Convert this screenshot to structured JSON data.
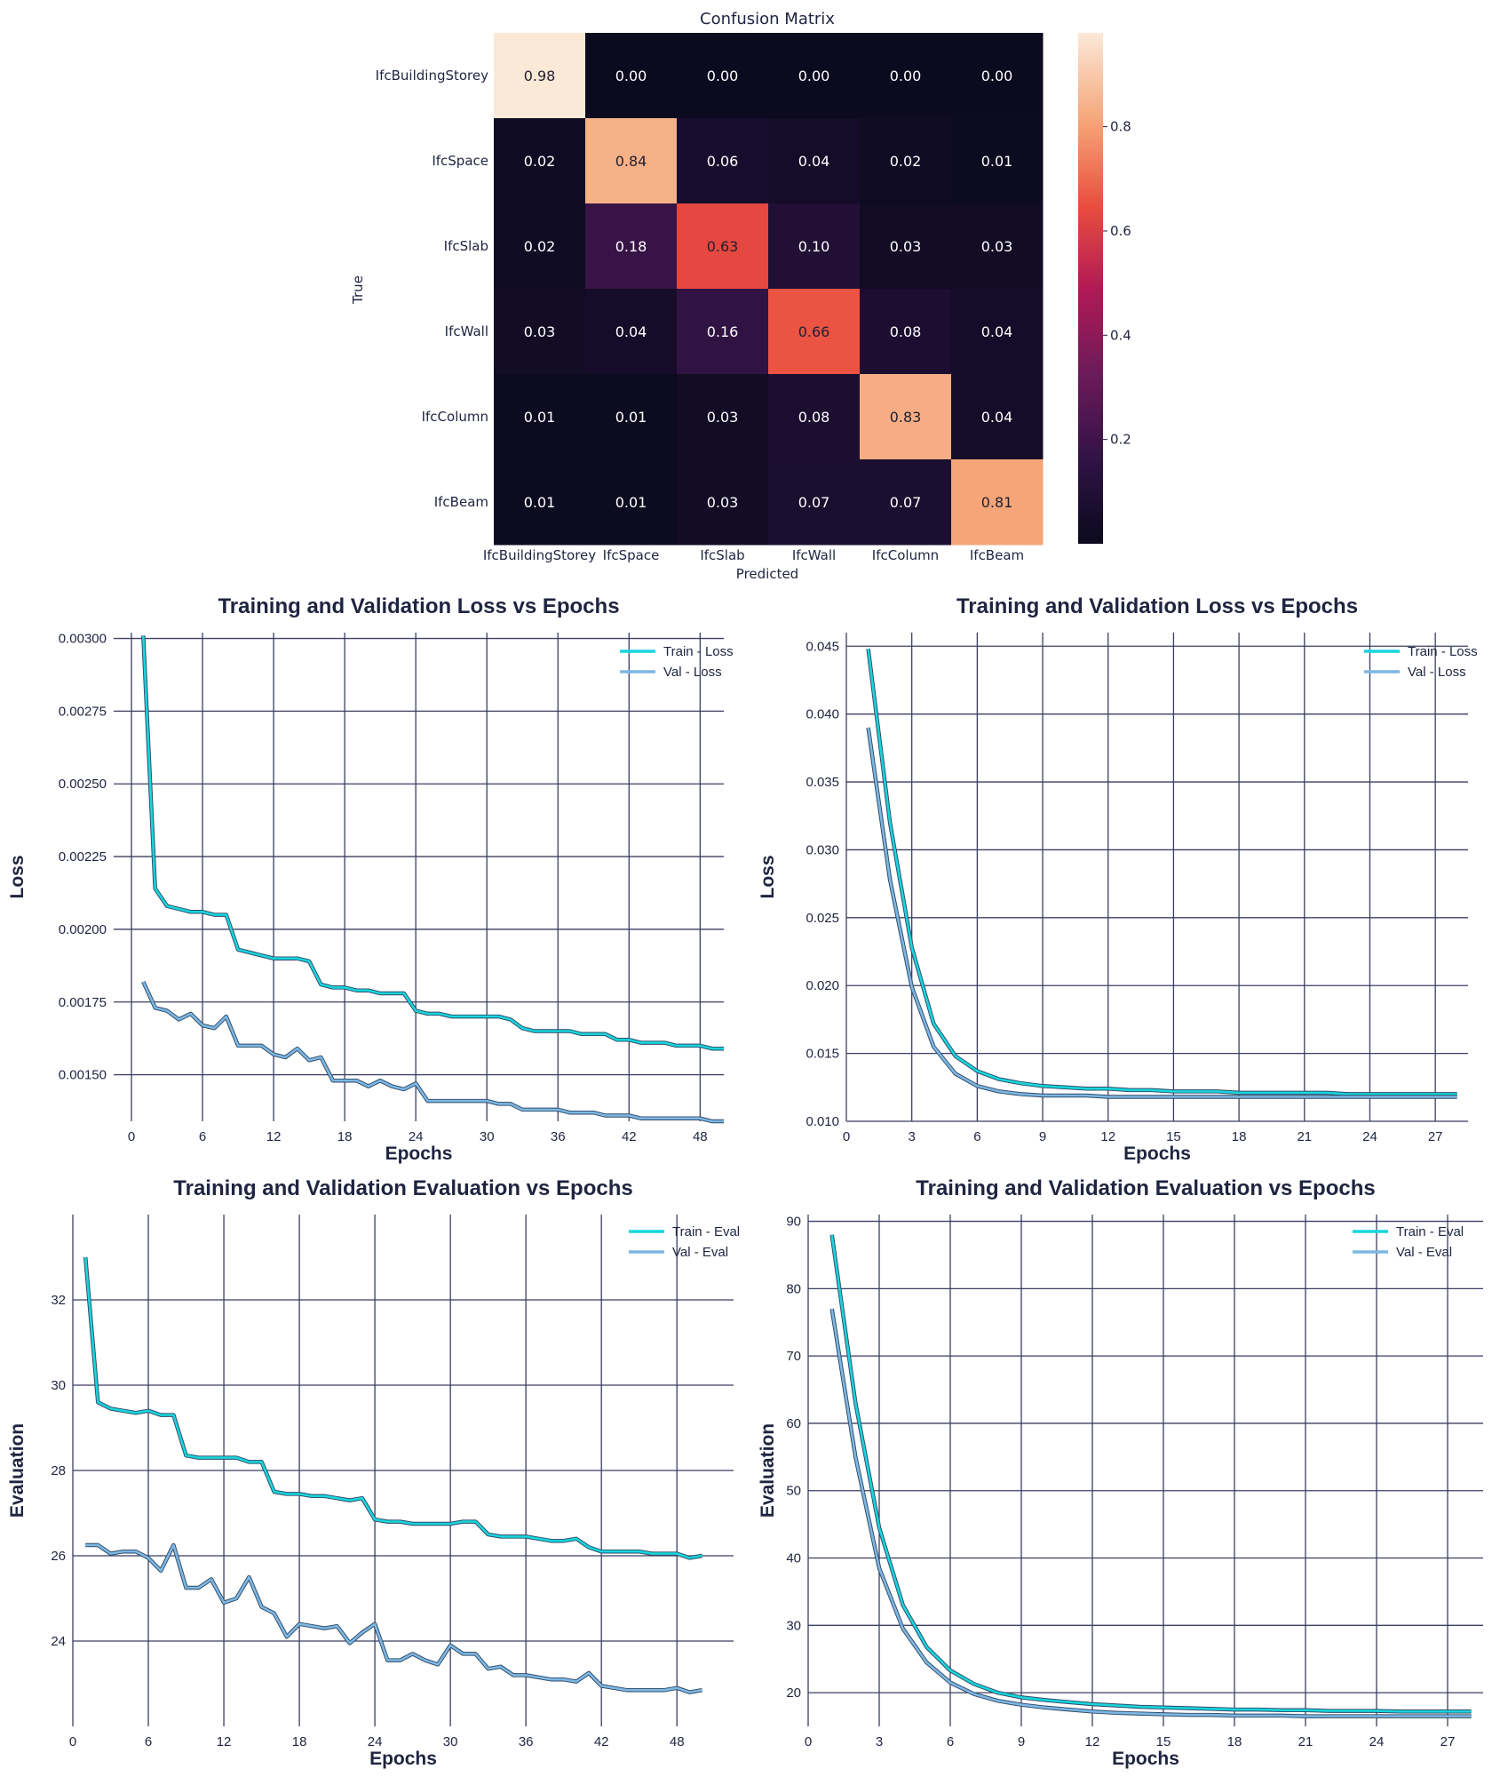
{
  "colors": {
    "train": "#17d6dc",
    "val": "#7db7e3",
    "grid": "#3b3f62",
    "cm_dark": "#0b0a1e",
    "cm_light": "#fbe9d8"
  },
  "chart_data": [
    {
      "type": "heatmap",
      "title": "Confusion Matrix",
      "xlabel": "Predicted",
      "ylabel": "True",
      "rows": [
        "IfcBuildingStorey",
        "IfcSpace",
        "IfcSlab",
        "IfcWall",
        "IfcColumn",
        "IfcBeam"
      ],
      "cols": [
        "IfcBuildingStorey",
        "IfcSpace",
        "IfcSlab",
        "IfcWall",
        "IfcColumn",
        "IfcBeam"
      ],
      "values": [
        [
          0.98,
          0.0,
          0.0,
          0.0,
          0.0,
          0.0
        ],
        [
          0.02,
          0.84,
          0.06,
          0.04,
          0.02,
          0.01
        ],
        [
          0.02,
          0.18,
          0.63,
          0.1,
          0.03,
          0.03
        ],
        [
          0.03,
          0.04,
          0.16,
          0.66,
          0.08,
          0.04
        ],
        [
          0.01,
          0.01,
          0.03,
          0.08,
          0.83,
          0.04
        ],
        [
          0.01,
          0.01,
          0.03,
          0.07,
          0.07,
          0.81
        ]
      ],
      "colorbar_ticks": [
        "0.2",
        "0.4",
        "0.6",
        "0.8"
      ],
      "vmin": 0.0,
      "vmax": 0.98
    },
    {
      "type": "line",
      "title": "Training and Validation Loss vs Epochs",
      "xlabel": "Epochs",
      "ylabel": "Loss",
      "xlim": [
        -1.5,
        50
      ],
      "ylim": [
        0.00134,
        0.00302
      ],
      "xticks": [
        0,
        6,
        12,
        18,
        24,
        30,
        36,
        42,
        48
      ],
      "yticks": [
        "0.00150",
        "0.00175",
        "0.00200",
        "0.00225",
        "0.00250",
        "0.00275",
        "0.00300"
      ],
      "legend": "top-right",
      "x": [
        1,
        2,
        3,
        4,
        5,
        6,
        7,
        8,
        9,
        10,
        11,
        12,
        13,
        14,
        15,
        16,
        17,
        18,
        19,
        20,
        21,
        22,
        23,
        24,
        25,
        26,
        27,
        28,
        29,
        30,
        31,
        32,
        33,
        34,
        35,
        36,
        37,
        38,
        39,
        40,
        41,
        42,
        43,
        44,
        45,
        46,
        47,
        48,
        49,
        50
      ],
      "series": [
        {
          "name": "Train - Loss",
          "values": [
            0.00301,
            0.00214,
            0.00208,
            0.00207,
            0.00206,
            0.00206,
            0.00205,
            0.00205,
            0.00193,
            0.00192,
            0.00191,
            0.0019,
            0.0019,
            0.0019,
            0.00189,
            0.00181,
            0.0018,
            0.0018,
            0.00179,
            0.00179,
            0.00178,
            0.00178,
            0.00178,
            0.00172,
            0.00171,
            0.00171,
            0.0017,
            0.0017,
            0.0017,
            0.0017,
            0.0017,
            0.00169,
            0.00166,
            0.00165,
            0.00165,
            0.00165,
            0.00165,
            0.00164,
            0.00164,
            0.00164,
            0.00162,
            0.00162,
            0.00161,
            0.00161,
            0.00161,
            0.0016,
            0.0016,
            0.0016,
            0.00159,
            0.00159
          ]
        },
        {
          "name": "Val - Loss",
          "values": [
            0.00182,
            0.00173,
            0.00172,
            0.00169,
            0.00171,
            0.00167,
            0.00166,
            0.0017,
            0.0016,
            0.0016,
            0.0016,
            0.00157,
            0.00156,
            0.00159,
            0.00155,
            0.00156,
            0.00148,
            0.00148,
            0.00148,
            0.00146,
            0.00148,
            0.00146,
            0.00145,
            0.00147,
            0.00141,
            0.00141,
            0.00141,
            0.00141,
            0.00141,
            0.00141,
            0.0014,
            0.0014,
            0.00138,
            0.00138,
            0.00138,
            0.00138,
            0.00137,
            0.00137,
            0.00137,
            0.00136,
            0.00136,
            0.00136,
            0.00135,
            0.00135,
            0.00135,
            0.00135,
            0.00135,
            0.00135,
            0.00134,
            0.00134
          ]
        }
      ]
    },
    {
      "type": "line",
      "title": "Training and Validation Loss vs Epochs",
      "xlabel": "Epochs",
      "ylabel": "Loss",
      "xlim": [
        0,
        28.5
      ],
      "ylim": [
        0.01,
        0.046
      ],
      "xticks": [
        0,
        3,
        6,
        9,
        12,
        15,
        18,
        21,
        24,
        27
      ],
      "yticks": [
        "0.010",
        "0.015",
        "0.020",
        "0.025",
        "0.030",
        "0.035",
        "0.040",
        "0.045"
      ],
      "legend": "top-right",
      "x": [
        1,
        2,
        3,
        4,
        5,
        6,
        7,
        8,
        9,
        10,
        11,
        12,
        13,
        14,
        15,
        16,
        17,
        18,
        19,
        20,
        21,
        22,
        23,
        24,
        25,
        26,
        27,
        28
      ],
      "series": [
        {
          "name": "Train - Loss",
          "values": [
            0.0448,
            0.032,
            0.0228,
            0.0172,
            0.0148,
            0.0137,
            0.0131,
            0.0128,
            0.0126,
            0.0125,
            0.0124,
            0.0124,
            0.0123,
            0.0123,
            0.0122,
            0.0122,
            0.0122,
            0.0121,
            0.0121,
            0.0121,
            0.0121,
            0.0121,
            0.012,
            0.012,
            0.012,
            0.012,
            0.012,
            0.012
          ]
        },
        {
          "name": "Val - Loss",
          "values": [
            0.039,
            0.0278,
            0.0199,
            0.0155,
            0.0135,
            0.0126,
            0.0122,
            0.012,
            0.0119,
            0.0119,
            0.0119,
            0.0118,
            0.0118,
            0.0118,
            0.0118,
            0.0118,
            0.0118,
            0.0118,
            0.0118,
            0.0118,
            0.0118,
            0.0118,
            0.0118,
            0.0118,
            0.0118,
            0.0118,
            0.0118,
            0.0118
          ]
        }
      ]
    },
    {
      "type": "line",
      "title": "Training and Validation Evaluation vs Epochs",
      "xlabel": "Epochs",
      "ylabel": "Evaluation",
      "xlim": [
        0,
        52.5
      ],
      "ylim": [
        22.0,
        34.0
      ],
      "xticks": [
        0,
        6,
        12,
        18,
        24,
        30,
        36,
        42,
        48
      ],
      "yticks": [
        "24",
        "26",
        "28",
        "30",
        "32"
      ],
      "legend": "top-right",
      "x": [
        1,
        2,
        3,
        4,
        5,
        6,
        7,
        8,
        9,
        10,
        11,
        12,
        13,
        14,
        15,
        16,
        17,
        18,
        19,
        20,
        21,
        22,
        23,
        24,
        25,
        26,
        27,
        28,
        29,
        30,
        31,
        32,
        33,
        34,
        35,
        36,
        37,
        38,
        39,
        40,
        41,
        42,
        43,
        44,
        45,
        46,
        47,
        48,
        49,
        50
      ],
      "series": [
        {
          "name": "Train - Eval",
          "values": [
            33.0,
            29.6,
            29.45,
            29.4,
            29.35,
            29.4,
            29.3,
            29.3,
            28.35,
            28.3,
            28.3,
            28.3,
            28.3,
            28.2,
            28.2,
            27.5,
            27.45,
            27.45,
            27.4,
            27.4,
            27.35,
            27.3,
            27.35,
            26.85,
            26.8,
            26.8,
            26.75,
            26.75,
            26.75,
            26.75,
            26.8,
            26.8,
            26.5,
            26.45,
            26.45,
            26.45,
            26.4,
            26.35,
            26.35,
            26.4,
            26.2,
            26.1,
            26.1,
            26.1,
            26.1,
            26.05,
            26.05,
            26.05,
            25.95,
            26.0
          ]
        },
        {
          "name": "Val - Eval",
          "values": [
            26.25,
            26.25,
            26.05,
            26.1,
            26.1,
            25.95,
            25.65,
            26.25,
            25.25,
            25.25,
            25.45,
            24.9,
            25.0,
            25.5,
            24.8,
            24.65,
            24.1,
            24.4,
            24.35,
            24.3,
            24.35,
            23.95,
            24.2,
            24.4,
            23.55,
            23.55,
            23.7,
            23.55,
            23.45,
            23.9,
            23.7,
            23.7,
            23.35,
            23.4,
            23.2,
            23.2,
            23.15,
            23.1,
            23.1,
            23.05,
            23.25,
            22.95,
            22.9,
            22.85,
            22.85,
            22.85,
            22.85,
            22.9,
            22.8,
            22.85
          ]
        }
      ]
    },
    {
      "type": "line",
      "title": "Training and Validation Evaluation vs Epochs",
      "xlabel": "Epochs",
      "ylabel": "Evaluation",
      "xlim": [
        0,
        28.5
      ],
      "ylim": [
        15.0,
        91.0
      ],
      "xticks": [
        0,
        3,
        6,
        9,
        12,
        15,
        18,
        21,
        24,
        27
      ],
      "yticks": [
        "20",
        "30",
        "40",
        "50",
        "60",
        "70",
        "80",
        "90"
      ],
      "legend": "top-right",
      "x": [
        1,
        2,
        3,
        4,
        5,
        6,
        7,
        8,
        9,
        10,
        11,
        12,
        13,
        14,
        15,
        16,
        17,
        18,
        19,
        20,
        21,
        22,
        23,
        24,
        25,
        26,
        27,
        28
      ],
      "series": [
        {
          "name": "Train - Eval",
          "values": [
            88.0,
            63.0,
            44.5,
            33.0,
            26.8,
            23.3,
            21.3,
            20.0,
            19.3,
            18.9,
            18.6,
            18.3,
            18.1,
            17.9,
            17.8,
            17.7,
            17.6,
            17.5,
            17.5,
            17.4,
            17.4,
            17.3,
            17.3,
            17.3,
            17.2,
            17.2,
            17.2,
            17.2
          ]
        },
        {
          "name": "Val - Eval",
          "values": [
            77.0,
            55.0,
            38.5,
            29.5,
            24.5,
            21.5,
            19.8,
            18.8,
            18.2,
            17.8,
            17.5,
            17.2,
            17.0,
            16.9,
            16.8,
            16.7,
            16.7,
            16.6,
            16.6,
            16.6,
            16.5,
            16.5,
            16.5,
            16.5,
            16.5,
            16.5,
            16.5,
            16.5
          ]
        }
      ]
    }
  ]
}
